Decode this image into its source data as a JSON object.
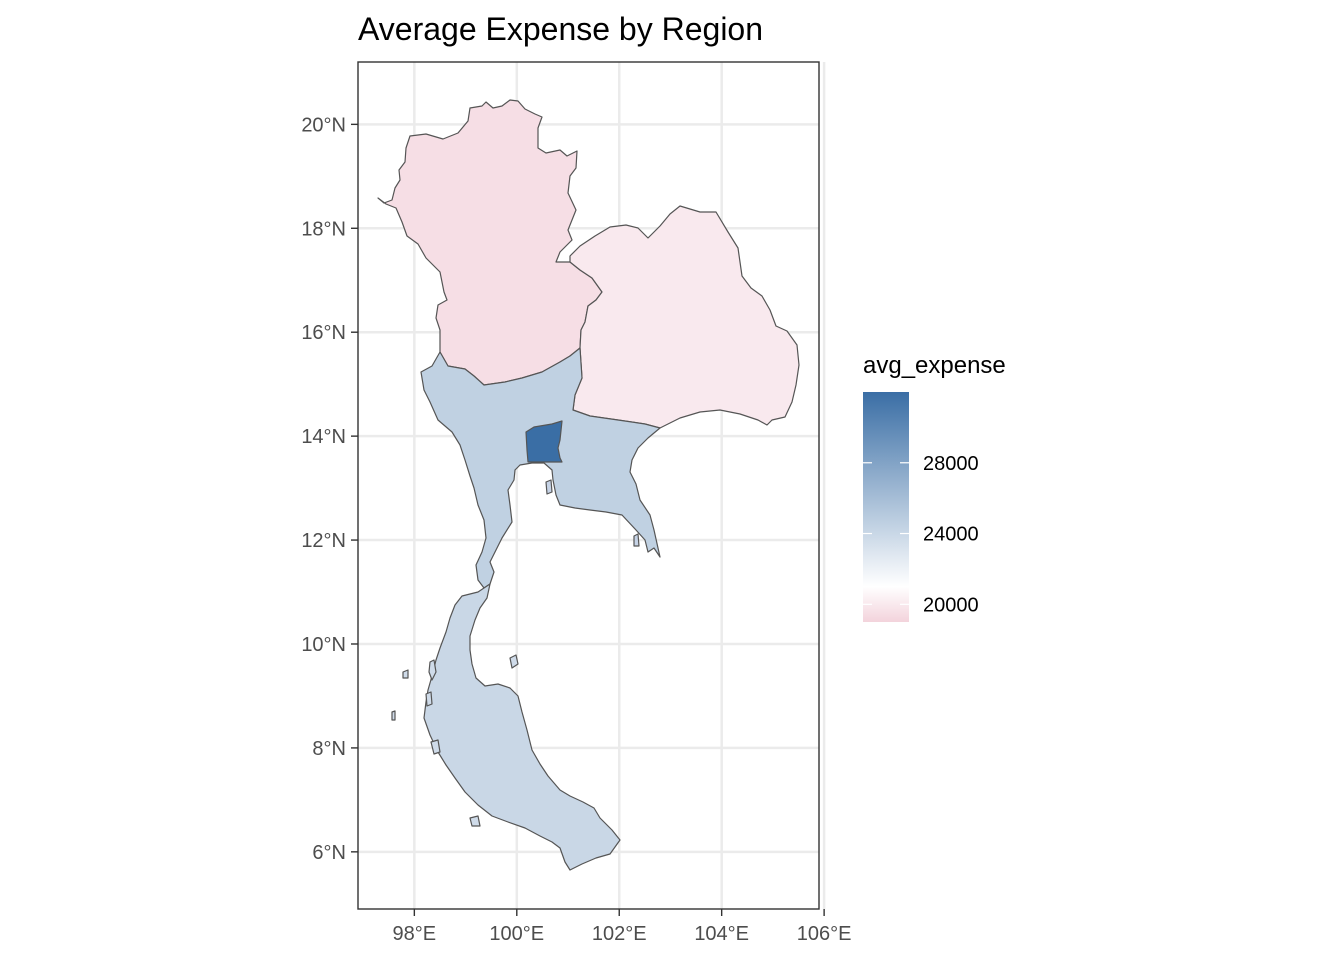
{
  "chart": {
    "title": "Average Expense by Region",
    "x_ticks": [
      {
        "value": 98,
        "label": "98°E"
      },
      {
        "value": 100,
        "label": "100°E"
      },
      {
        "value": 102,
        "label": "102°E"
      },
      {
        "value": 104,
        "label": "104°E"
      },
      {
        "value": 106,
        "label": "106°E"
      }
    ],
    "y_ticks": [
      {
        "value": 20,
        "label": "20°N"
      },
      {
        "value": 18,
        "label": "18°N"
      },
      {
        "value": 16,
        "label": "16°N"
      },
      {
        "value": 14,
        "label": "14°N"
      },
      {
        "value": 12,
        "label": "12°N"
      },
      {
        "value": 10,
        "label": "10°N"
      },
      {
        "value": 8,
        "label": "8°N"
      },
      {
        "value": 6,
        "label": "6°N"
      }
    ],
    "legend": {
      "title": "avg_expense",
      "labels": [
        {
          "value": 28000,
          "label": "28000"
        },
        {
          "value": 24000,
          "label": "24000"
        },
        {
          "value": 20000,
          "label": "20000"
        }
      ],
      "colors": {
        "low": "#f3d3dc",
        "mid": "#ffffff",
        "high": "#3a6ea5"
      }
    }
  },
  "chart_data": {
    "type": "choropleth",
    "title": "Average Expense by Region",
    "fill_variable": "avg_expense",
    "xlim": [
      96.9,
      105.9
    ],
    "ylim": [
      4.9,
      21.2
    ],
    "scale": {
      "low": 19000,
      "mid": 21000,
      "high": 32000,
      "limits": [
        19000,
        32000
      ]
    },
    "regions": [
      {
        "id": "north",
        "value": 19500
      },
      {
        "id": "northeast",
        "value": 20000
      },
      {
        "id": "central",
        "value": 24500
      },
      {
        "id": "bangkok",
        "value": 32000
      },
      {
        "id": "south",
        "value": 24000
      }
    ]
  }
}
